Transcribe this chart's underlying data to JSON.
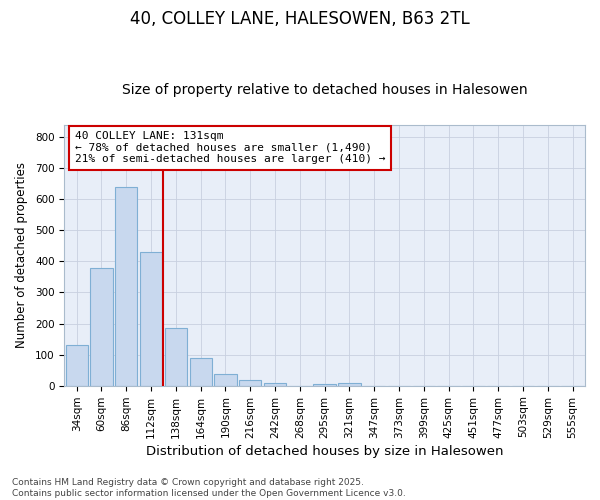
{
  "title1": "40, COLLEY LANE, HALESOWEN, B63 2TL",
  "title2": "Size of property relative to detached houses in Halesowen",
  "xlabel": "Distribution of detached houses by size in Halesowen",
  "ylabel": "Number of detached properties",
  "categories": [
    "34sqm",
    "60sqm",
    "86sqm",
    "112sqm",
    "138sqm",
    "164sqm",
    "190sqm",
    "216sqm",
    "242sqm",
    "268sqm",
    "295sqm",
    "321sqm",
    "347sqm",
    "373sqm",
    "399sqm",
    "425sqm",
    "451sqm",
    "477sqm",
    "503sqm",
    "529sqm",
    "555sqm"
  ],
  "values": [
    130,
    380,
    640,
    430,
    185,
    90,
    37,
    17,
    10,
    0,
    5,
    8,
    0,
    0,
    0,
    0,
    0,
    0,
    0,
    0,
    0
  ],
  "bar_color": "#c8d8ee",
  "bar_edge_color": "#7fafd4",
  "vline_color": "#cc0000",
  "annotation_text": "40 COLLEY LANE: 131sqm\n← 78% of detached houses are smaller (1,490)\n21% of semi-detached houses are larger (410) →",
  "annotation_box_color": "white",
  "annotation_box_edge_color": "#cc0000",
  "grid_color": "#c8d0e0",
  "bg_color": "#ffffff",
  "plot_bg_color": "#e8eef8",
  "ylim": [
    0,
    840
  ],
  "yticks": [
    0,
    100,
    200,
    300,
    400,
    500,
    600,
    700,
    800
  ],
  "footnote": "Contains HM Land Registry data © Crown copyright and database right 2025.\nContains public sector information licensed under the Open Government Licence v3.0.",
  "title1_fontsize": 12,
  "title2_fontsize": 10,
  "xlabel_fontsize": 9.5,
  "ylabel_fontsize": 8.5,
  "tick_fontsize": 7.5,
  "annotation_fontsize": 8,
  "footnote_fontsize": 6.5
}
